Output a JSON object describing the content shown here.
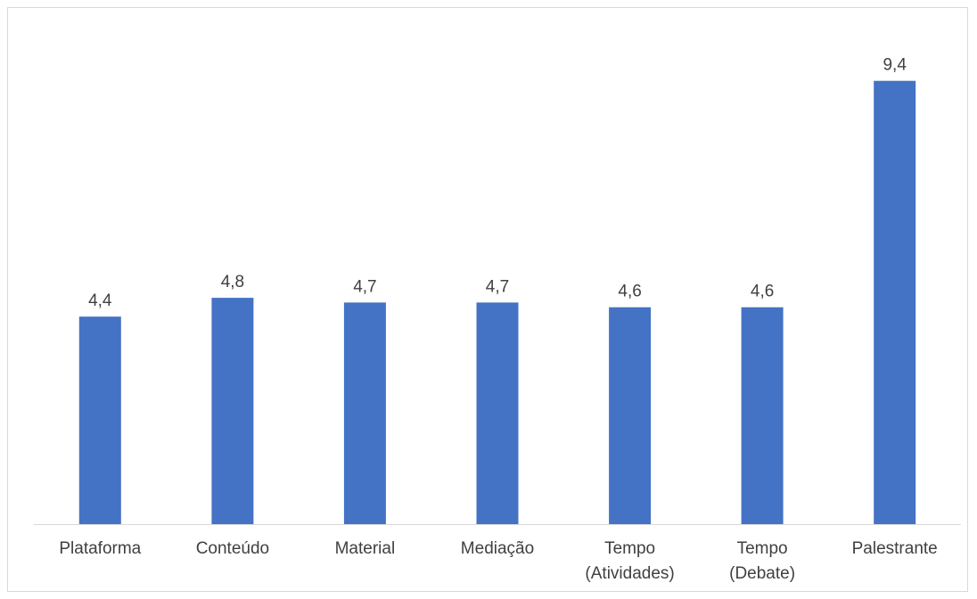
{
  "chart_data": {
    "type": "bar",
    "categories": [
      [
        "Plataforma"
      ],
      [
        "Conteúdo"
      ],
      [
        "Material"
      ],
      [
        "Mediação"
      ],
      [
        "Tempo",
        "(Atividades)"
      ],
      [
        "Tempo",
        "(Debate)"
      ],
      [
        "Palestrante"
      ]
    ],
    "values": [
      4.4,
      4.8,
      4.7,
      4.7,
      4.6,
      4.6,
      9.4
    ],
    "value_labels": [
      "4,4",
      "4,8",
      "4,7",
      "4,7",
      "4,6",
      "4,6",
      "9,4"
    ],
    "title": "",
    "xlabel": "",
    "ylabel": "",
    "ylim": [
      0,
      10
    ],
    "y_axis_visible": false,
    "grid": false,
    "legend": "none",
    "colors": {
      "bar": "#4472C4",
      "axis": "#d9d9d9",
      "text": "#404040",
      "border": "#d9d9d9"
    }
  }
}
